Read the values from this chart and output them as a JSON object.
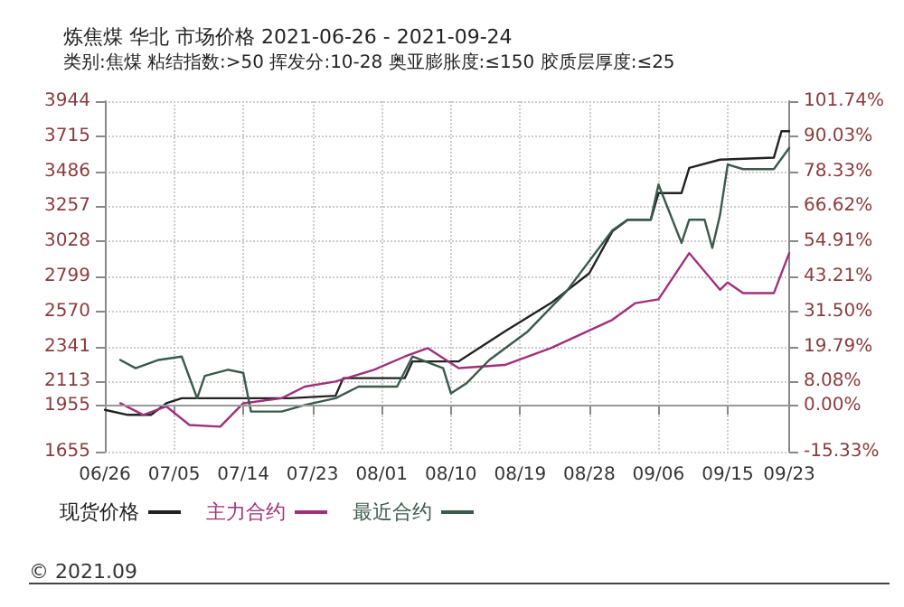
{
  "chart_data": {
    "type": "line",
    "title": "炼焦煤 华北 市场价格 2021-06-26 - 2021-09-24",
    "subtitle": "类别:焦煤 粘结指数:>50 挥发分:10-28 奥亚膨胀度:≤150 胶质层厚度:≤25",
    "xlim": [
      "2021-06-26",
      "2021-09-23"
    ],
    "xticks": [
      {
        "value": "2021-06-26",
        "label": "06/26"
      },
      {
        "value": "2021-07-05",
        "label": "07/05"
      },
      {
        "value": "2021-07-14",
        "label": "07/14"
      },
      {
        "value": "2021-07-23",
        "label": "07/23"
      },
      {
        "value": "2021-08-01",
        "label": "08/01"
      },
      {
        "value": "2021-08-10",
        "label": "08/10"
      },
      {
        "value": "2021-08-19",
        "label": "08/19"
      },
      {
        "value": "2021-08-28",
        "label": "08/28"
      },
      {
        "value": "2021-09-06",
        "label": "09/06"
      },
      {
        "value": "2021-09-15",
        "label": "09/15"
      },
      {
        "value": "2021-09-23",
        "label": "09/23"
      }
    ],
    "ylim": [
      1655,
      3944
    ],
    "yticks": [
      1655,
      1955,
      2113,
      2341,
      2570,
      2799,
      3028,
      3257,
      3486,
      3715,
      3944
    ],
    "y2lim": [
      -15.33,
      101.74
    ],
    "y2ticks": [
      {
        "value": -15.33,
        "label": "-15.33%"
      },
      {
        "value": 0,
        "label": "0.00%"
      },
      {
        "value": 8.08,
        "label": "8.08%"
      },
      {
        "value": 19.79,
        "label": "19.79%"
      },
      {
        "value": 31.5,
        "label": "31.50%"
      },
      {
        "value": 43.21,
        "label": "43.21%"
      },
      {
        "value": 54.91,
        "label": "54.91%"
      },
      {
        "value": 66.62,
        "label": "66.62%"
      },
      {
        "value": 78.33,
        "label": "78.33%"
      },
      {
        "value": 90.03,
        "label": "90.03%"
      },
      {
        "value": 101.74,
        "label": "101.74%"
      }
    ],
    "series": [
      {
        "name": "现货价格",
        "color": "#222222",
        "x": [
          "2021-06-26",
          "2021-06-29",
          "2021-07-02",
          "2021-07-04",
          "2021-07-06",
          "2021-07-20",
          "2021-07-26",
          "2021-07-27",
          "2021-08-04",
          "2021-08-05",
          "2021-08-11",
          "2021-08-17",
          "2021-08-23",
          "2021-08-28",
          "2021-08-31",
          "2021-09-02",
          "2021-09-05",
          "2021-09-06",
          "2021-09-09",
          "2021-09-10",
          "2021-09-14",
          "2021-09-21",
          "2021-09-22",
          "2021-09-23"
        ],
        "values": [
          1928,
          1895,
          1895,
          1971,
          2004,
          2004,
          2020,
          2135,
          2135,
          2244,
          2244,
          2440,
          2625,
          2820,
          3094,
          3170,
          3170,
          3344,
          3344,
          3508,
          3562,
          3575,
          3748,
          3748
        ]
      },
      {
        "name": "主力合约",
        "color": "#a0307a",
        "x": [
          "2021-06-28",
          "2021-07-01",
          "2021-07-04",
          "2021-07-07",
          "2021-07-11",
          "2021-07-14",
          "2021-07-19",
          "2021-07-22",
          "2021-07-26",
          "2021-07-31",
          "2021-08-04",
          "2021-08-07",
          "2021-08-11",
          "2021-08-17",
          "2021-08-23",
          "2021-08-31",
          "2021-09-03",
          "2021-09-06",
          "2021-09-10",
          "2021-09-14",
          "2021-09-15",
          "2021-09-17",
          "2021-09-21",
          "2021-09-23"
        ],
        "values": [
          1971,
          1895,
          1950,
          1829,
          1818,
          1971,
          2004,
          2080,
          2113,
          2190,
          2276,
          2331,
          2200,
          2221,
          2331,
          2516,
          2625,
          2650,
          2952,
          2712,
          2760,
          2690,
          2690,
          2952
        ]
      },
      {
        "name": "最近合约",
        "color": "#3a5a4a",
        "x": [
          "2021-06-28",
          "2021-06-30",
          "2021-07-03",
          "2021-07-06",
          "2021-07-08",
          "2021-07-09",
          "2021-07-12",
          "2021-07-14",
          "2021-07-15",
          "2021-07-19",
          "2021-07-22",
          "2021-07-26",
          "2021-07-29",
          "2021-08-03",
          "2021-08-05",
          "2021-08-09",
          "2021-08-10",
          "2021-08-12",
          "2021-08-15",
          "2021-08-20",
          "2021-08-25",
          "2021-08-31",
          "2021-09-02",
          "2021-09-05",
          "2021-09-06",
          "2021-09-09",
          "2021-09-10",
          "2021-09-12",
          "2021-09-13",
          "2021-09-14",
          "2021-09-15",
          "2021-09-17",
          "2021-09-21",
          "2021-09-23"
        ],
        "values": [
          2254,
          2200,
          2254,
          2276,
          2004,
          2150,
          2190,
          2170,
          1917,
          1917,
          1960,
          2004,
          2080,
          2080,
          2276,
          2200,
          2036,
          2100,
          2254,
          2440,
          2700,
          3100,
          3170,
          3170,
          3400,
          3018,
          3170,
          3170,
          2985,
          3200,
          3530,
          3500,
          3500,
          3639
        ]
      }
    ],
    "ref_lines": [
      {
        "axis": "y",
        "value": 1955,
        "color": "#999999"
      }
    ],
    "grid": true,
    "legend": "bottom",
    "marker": "none",
    "line_style": "solid",
    "annotations": [
      "© 2021.09"
    ]
  }
}
